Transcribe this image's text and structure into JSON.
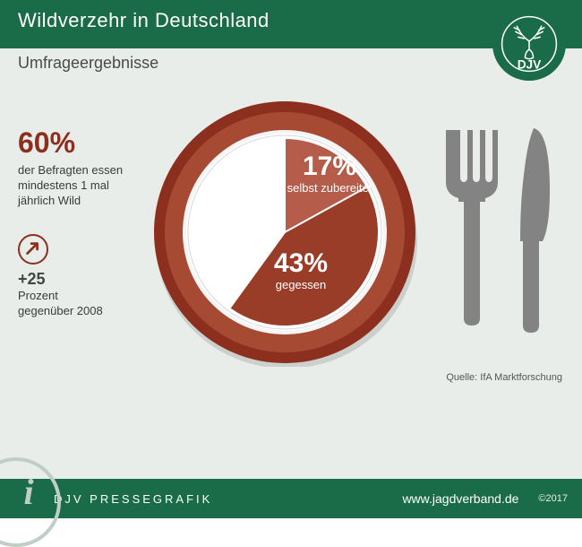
{
  "header": {
    "title": "Wildverzehr in Deutschland",
    "subtitle": "Umfrageergebnisse"
  },
  "logo": {
    "letters": "DJV",
    "bg": "#1a6b47"
  },
  "left": {
    "big_pct": "60%",
    "big_desc": "der Befragten essen mindestens 1 mal jährlich Wild",
    "delta": "+25",
    "delta_desc1": "Prozent",
    "delta_desc2": "gegenüber 2008",
    "delta_color": "#8c2f1f"
  },
  "chart": {
    "type": "pie",
    "total_deg": 360,
    "slices": [
      {
        "key": "selbst",
        "value": 17,
        "label": "selbst zubereitet",
        "color": "#b55c4a",
        "start_deg": 0,
        "end_deg": 61.2
      },
      {
        "key": "gegessen",
        "value": 43,
        "label": "gegessen",
        "color": "#9a3d28",
        "start_deg": 61.2,
        "end_deg": 216
      },
      {
        "key": "rest",
        "value": 40,
        "label": "",
        "color": "#ffffff",
        "start_deg": 216,
        "end_deg": 360
      }
    ],
    "plate_rim_outer": "#8c2f1f",
    "plate_rim_mid": "#a74a33",
    "plate_inner": "#ffffff",
    "outer_r": 146,
    "rim_mid_r": 134,
    "inner_rim_r": 114,
    "pie_r": 104,
    "value_fontsize": 30,
    "label_fontsize": 13,
    "label_color": "#ffffff"
  },
  "cutlery": {
    "color": "#7d7d7d"
  },
  "source": "Quelle: IfA Marktforschung",
  "footer": {
    "brand": "DJV PRESSEGRAFIK",
    "url": "www.jagdverband.de",
    "year": "©2017",
    "bg": "#1a6b47"
  },
  "colors": {
    "page_bg": "#e8ede9",
    "header_bg": "#1a6b47",
    "text_dark": "#3a3a3a"
  }
}
